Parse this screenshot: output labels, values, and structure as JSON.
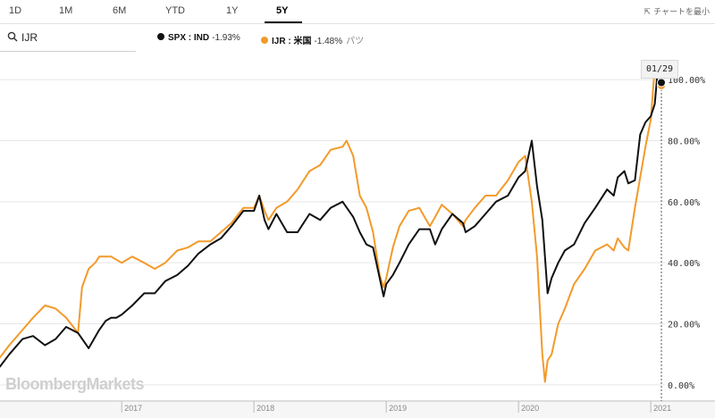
{
  "tabs": [
    {
      "label": "1D",
      "active": false
    },
    {
      "label": "1M",
      "active": false
    },
    {
      "label": "6M",
      "active": false
    },
    {
      "label": "YTD",
      "active": false
    },
    {
      "label": "1Y",
      "active": false
    },
    {
      "label": "5Y",
      "active": true
    }
  ],
  "minimize_label": "チャートを最小",
  "minimize_icon": "collapse-arrows-icon",
  "search": {
    "icon": "search-icon",
    "value": "IJR"
  },
  "legend": [
    {
      "symbol": "SPX : IND",
      "change": "-1.93%",
      "note": "",
      "color": "#111111"
    },
    {
      "symbol": "IJR : 米国",
      "change": "-1.48%",
      "note": "パツ",
      "color": "#f39a2b"
    }
  ],
  "watermark": "BloombergMarkets",
  "cursor_date": "01/29",
  "chart_data": {
    "type": "line",
    "title": "",
    "xlabel": "",
    "ylabel": "",
    "x_ticks": [
      "2017",
      "2018",
      "2019",
      "2020",
      "2021"
    ],
    "y_ticks": [
      "0.00%",
      "20.00%",
      "40.00%",
      "60.00%",
      "80.00%",
      "100.00%"
    ],
    "ylim": [
      -5,
      105
    ],
    "xlim": [
      2016.08,
      2021.08
    ],
    "grid": true,
    "y_axis_side": "right",
    "series": [
      {
        "name": "SPX : IND",
        "color": "#111111",
        "x": [
          2016.08,
          2016.15,
          2016.25,
          2016.33,
          2016.42,
          2016.5,
          2016.58,
          2016.67,
          2016.75,
          2016.83,
          2016.88,
          2016.92,
          2016.96,
          2017.0,
          2017.08,
          2017.17,
          2017.25,
          2017.33,
          2017.42,
          2017.5,
          2017.58,
          2017.67,
          2017.75,
          2017.83,
          2017.92,
          2018.0,
          2018.04,
          2018.08,
          2018.11,
          2018.17,
          2018.25,
          2018.33,
          2018.42,
          2018.5,
          2018.58,
          2018.67,
          2018.75,
          2018.8,
          2018.85,
          2018.9,
          2018.95,
          2018.98,
          2019.0,
          2019.05,
          2019.1,
          2019.17,
          2019.25,
          2019.33,
          2019.37,
          2019.42,
          2019.5,
          2019.58,
          2019.6,
          2019.67,
          2019.75,
          2019.83,
          2019.92,
          2020.0,
          2020.05,
          2020.1,
          2020.14,
          2020.18,
          2020.22,
          2020.25,
          2020.3,
          2020.35,
          2020.42,
          2020.5,
          2020.58,
          2020.67,
          2020.72,
          2020.75,
          2020.8,
          2020.83,
          2020.88,
          2020.92,
          2020.96,
          2021.0,
          2021.03,
          2021.05,
          2021.08
        ],
        "y": [
          6,
          10,
          15,
          16,
          13,
          15,
          19,
          17,
          12,
          18,
          21,
          22,
          22,
          23,
          26,
          30,
          30,
          34,
          36,
          39,
          43,
          46,
          48,
          52,
          57,
          57,
          62,
          54,
          51,
          56,
          50,
          50,
          56,
          54,
          58,
          60,
          55,
          50,
          46,
          45,
          35,
          29,
          33,
          36,
          40,
          46,
          51,
          51,
          46,
          51,
          56,
          53,
          50,
          52,
          56,
          60,
          62,
          68,
          70,
          80,
          65,
          54,
          30,
          35,
          40,
          44,
          46,
          53,
          58,
          64,
          62,
          68,
          70,
          66,
          67,
          82,
          86,
          88,
          92,
          102,
          99
        ]
      },
      {
        "name": "IJR : 米国",
        "color": "#f39a2b",
        "x": [
          2016.08,
          2016.15,
          2016.25,
          2016.33,
          2016.42,
          2016.5,
          2016.58,
          2016.67,
          2016.7,
          2016.75,
          2016.8,
          2016.83,
          2016.92,
          2017.0,
          2017.08,
          2017.17,
          2017.25,
          2017.33,
          2017.42,
          2017.5,
          2017.58,
          2017.67,
          2017.75,
          2017.83,
          2017.92,
          2018.0,
          2018.04,
          2018.08,
          2018.11,
          2018.17,
          2018.25,
          2018.33,
          2018.42,
          2018.5,
          2018.58,
          2018.67,
          2018.7,
          2018.75,
          2018.8,
          2018.85,
          2018.9,
          2018.95,
          2018.98,
          2019.0,
          2019.05,
          2019.1,
          2019.17,
          2019.25,
          2019.33,
          2019.37,
          2019.42,
          2019.5,
          2019.58,
          2019.6,
          2019.67,
          2019.75,
          2019.83,
          2019.92,
          2020.0,
          2020.05,
          2020.1,
          2020.14,
          2020.18,
          2020.2,
          2020.22,
          2020.25,
          2020.3,
          2020.35,
          2020.42,
          2020.5,
          2020.58,
          2020.67,
          2020.72,
          2020.75,
          2020.8,
          2020.83,
          2020.88,
          2020.92,
          2020.96,
          2021.0,
          2021.03,
          2021.05,
          2021.08
        ],
        "y": [
          9,
          13,
          18,
          22,
          26,
          25,
          22,
          17,
          32,
          38,
          40,
          42,
          42,
          40,
          42,
          40,
          38,
          40,
          44,
          45,
          47,
          47,
          50,
          53,
          58,
          58,
          62,
          57,
          54,
          58,
          60,
          64,
          70,
          72,
          77,
          78,
          80,
          75,
          62,
          58,
          50,
          36,
          32,
          35,
          45,
          52,
          57,
          58,
          52,
          55,
          59,
          56,
          52,
          54,
          58,
          62,
          62,
          67,
          73,
          75,
          60,
          42,
          10,
          1,
          8,
          10,
          20,
          25,
          33,
          38,
          44,
          46,
          44,
          48,
          45,
          44,
          58,
          68,
          78,
          87,
          104,
          98,
          98
        ]
      }
    ]
  }
}
